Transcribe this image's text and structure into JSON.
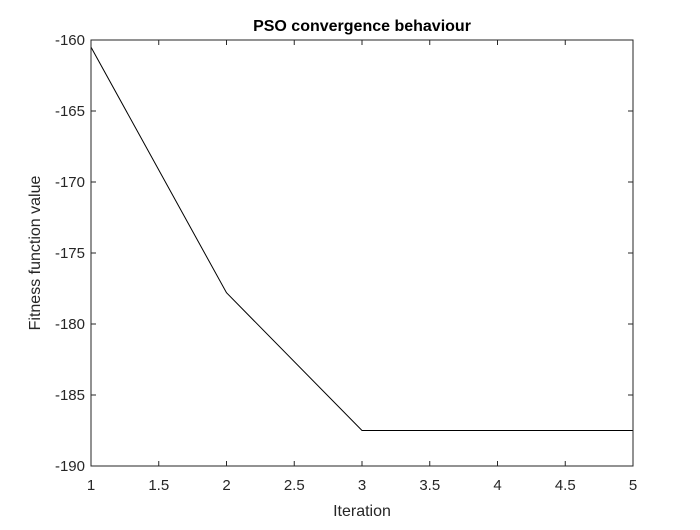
{
  "chart_data": {
    "type": "line",
    "title": "PSO convergence behaviour",
    "xlabel": "Iteration",
    "ylabel": "Fitness function value",
    "x": [
      1,
      2,
      3,
      4,
      5
    ],
    "series": [
      {
        "values": [
          -160.5,
          -177.8,
          -187.5,
          -187.5,
          -187.5
        ]
      }
    ],
    "xlim": [
      1,
      5
    ],
    "ylim": [
      -190,
      -160
    ],
    "xticks": [
      1,
      1.5,
      2,
      2.5,
      3,
      3.5,
      4,
      4.5,
      5
    ],
    "xtick_labels": [
      "1",
      "1.5",
      "2",
      "2.5",
      "3",
      "3.5",
      "4",
      "4.5",
      "5"
    ],
    "yticks": [
      -190,
      -185,
      -180,
      -175,
      -170,
      -165,
      -160
    ],
    "ytick_labels": [
      "-190",
      "-185",
      "-180",
      "-175",
      "-170",
      "-165",
      "-160"
    ],
    "grid": false,
    "legend": false,
    "line_color": "#000000",
    "axes_color": "#262626"
  }
}
